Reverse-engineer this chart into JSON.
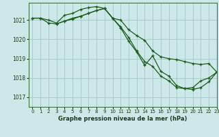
{
  "title": "Graphe pression niveau de la mer (hPa)",
  "background_color": "#cce8e8",
  "grid_color": "#aacccc",
  "line_color": "#1a5c1a",
  "xlim": [
    -0.5,
    23
  ],
  "ylim": [
    1016.5,
    1021.9
  ],
  "yticks": [
    1017,
    1018,
    1019,
    1020,
    1021
  ],
  "xticks": [
    0,
    1,
    2,
    3,
    4,
    5,
    6,
    7,
    8,
    9,
    10,
    11,
    12,
    13,
    14,
    15,
    16,
    17,
    18,
    19,
    20,
    21,
    22,
    23
  ],
  "series1_x": [
    0,
    1,
    2,
    3,
    4,
    5,
    6,
    7,
    8,
    9,
    10,
    11,
    12,
    13,
    14,
    15,
    16,
    17,
    18,
    19,
    20,
    21,
    22,
    23
  ],
  "series1_y": [
    1021.1,
    1021.1,
    1021.0,
    1020.85,
    1021.25,
    1021.35,
    1021.55,
    1021.65,
    1021.7,
    1021.6,
    1021.1,
    1021.0,
    1020.5,
    1020.2,
    1019.95,
    1019.4,
    1019.1,
    1019.0,
    1018.95,
    1018.85,
    1018.75,
    1018.7,
    1018.75,
    1018.3
  ],
  "series2_x": [
    0,
    1,
    2,
    3,
    4,
    5,
    6,
    7,
    8,
    9,
    10,
    11,
    12,
    13,
    14,
    15,
    16,
    17,
    18,
    19,
    20,
    21,
    22,
    23
  ],
  "series2_y": [
    1021.1,
    1021.1,
    1020.85,
    1020.8,
    1020.95,
    1021.1,
    1021.2,
    1021.35,
    1021.5,
    1021.6,
    1021.1,
    1020.65,
    1020.1,
    1019.4,
    1018.85,
    1018.6,
    1018.1,
    1017.85,
    1017.5,
    1017.45,
    1017.5,
    1017.85,
    1018.0,
    1018.3
  ],
  "series3_x": [
    3,
    4,
    5,
    6,
    7,
    8,
    9,
    10,
    11,
    12,
    13,
    14,
    15,
    16,
    17,
    18,
    19,
    20,
    21,
    22,
    23
  ],
  "series3_y": [
    1020.8,
    1020.95,
    1021.05,
    1021.2,
    1021.35,
    1021.5,
    1021.6,
    1021.1,
    1020.6,
    1019.9,
    1019.35,
    1018.65,
    1019.15,
    1018.35,
    1018.1,
    1017.6,
    1017.45,
    1017.4,
    1017.5,
    1017.8,
    1018.3
  ]
}
